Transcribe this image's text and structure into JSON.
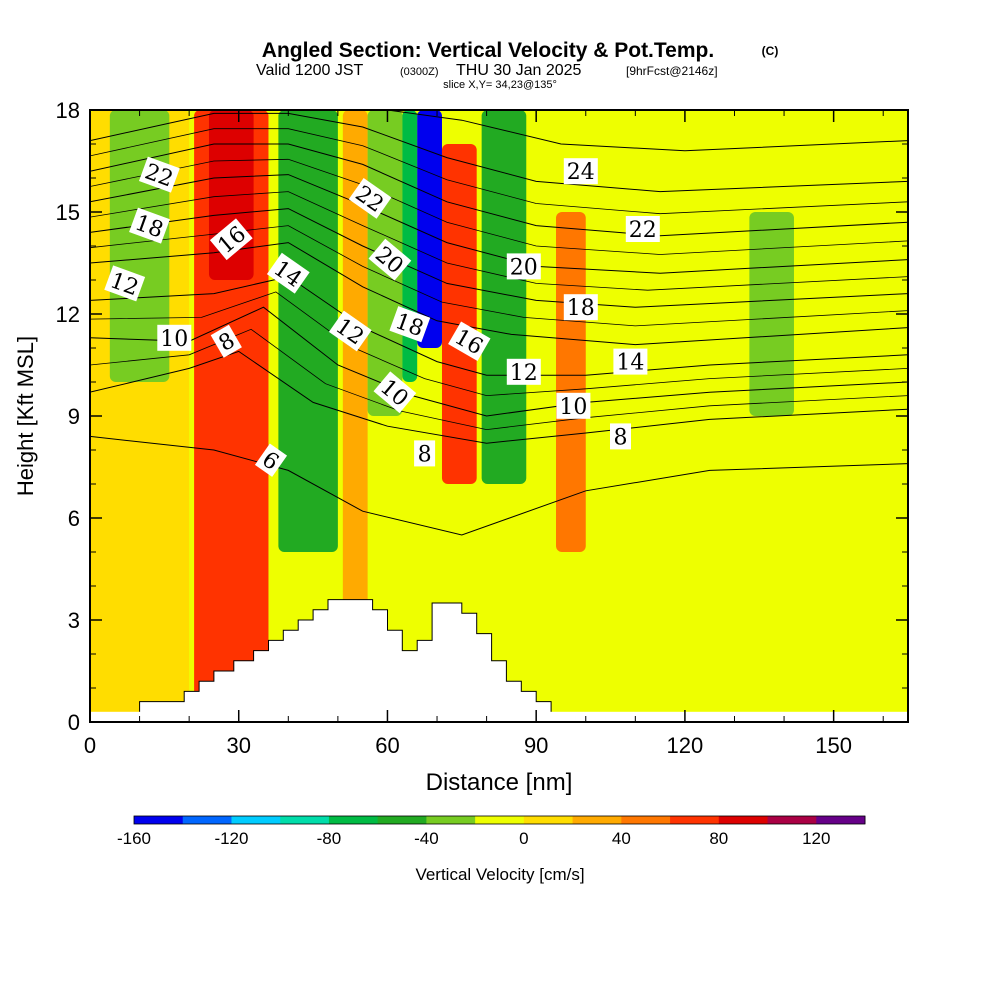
{
  "title": {
    "main": "Angled Section: Vertical Velocity & Pot.Temp.",
    "main_suffix": "(C)",
    "valid_a": "Valid 1200 JST",
    "valid_b": "(0300Z)",
    "valid_c": "THU 30 Jan 2025",
    "valid_d": "[9hrFcst@2146z]",
    "slice": "slice X,Y= 34,23@135°"
  },
  "chart_data": {
    "type": "heatmap",
    "xlabel": "Distance [nm]",
    "ylabel": "Height [Kft MSL]",
    "xlim": [
      0,
      165
    ],
    "ylim": [
      0,
      18
    ],
    "x_ticks": [
      0,
      30,
      60,
      90,
      120,
      150
    ],
    "y_ticks": [
      0,
      3,
      6,
      9,
      12,
      15,
      18
    ],
    "colorbar": {
      "label": "Vertical Velocity [cm/s]",
      "min": -160,
      "max": 140,
      "step": 20,
      "tick_values": [
        -160,
        -120,
        -80,
        -40,
        0,
        40,
        80,
        120
      ],
      "colors": [
        "#0000ee",
        "#0066ff",
        "#00ccff",
        "#00ddaa",
        "#00bb44",
        "#22aa22",
        "#77cc22",
        "#eeff00",
        "#ffdd00",
        "#ffaa00",
        "#ff7700",
        "#ff3300",
        "#dd0000",
        "#aa0044",
        "#660088"
      ]
    },
    "velocity_bands": [
      {
        "x_from": 0,
        "x_to": 20,
        "value": 10
      },
      {
        "x_from": 4,
        "x_to": 16,
        "value": -40,
        "y_from": 10,
        "y_to": 18
      },
      {
        "x_from": 21,
        "x_to": 36,
        "value": 60
      },
      {
        "x_from": 24,
        "x_to": 33,
        "value": 90,
        "y_from": 13,
        "y_to": 18
      },
      {
        "x_from": 38,
        "x_to": 50,
        "value": -50,
        "y_from": 5,
        "y_to": 18
      },
      {
        "x_from": 51,
        "x_to": 56,
        "value": 20
      },
      {
        "x_from": 56,
        "x_to": 63,
        "value": -40,
        "y_from": 9,
        "y_to": 18
      },
      {
        "x_from": 63,
        "x_to": 66,
        "value": -80,
        "y_from": 10,
        "y_to": 18
      },
      {
        "x_from": 66,
        "x_to": 71,
        "value": -150,
        "y_from": 11,
        "y_to": 18
      },
      {
        "x_from": 71,
        "x_to": 78,
        "value": 70,
        "y_from": 7,
        "y_to": 17
      },
      {
        "x_from": 79,
        "x_to": 88,
        "value": -50,
        "y_from": 7,
        "y_to": 18
      },
      {
        "x_from": 94,
        "x_to": 100,
        "value": 40,
        "y_from": 5,
        "y_to": 15
      },
      {
        "x_from": 133,
        "x_to": 142,
        "value": -30,
        "y_from": 9,
        "y_to": 15
      }
    ],
    "terrain_profile": [
      [
        10,
        0.3
      ],
      [
        10,
        0.6
      ],
      [
        19,
        0.6
      ],
      [
        19,
        0.9
      ],
      [
        22,
        0.9
      ],
      [
        22,
        1.2
      ],
      [
        25,
        1.2
      ],
      [
        25,
        1.5
      ],
      [
        29,
        1.5
      ],
      [
        29,
        1.8
      ],
      [
        33,
        1.8
      ],
      [
        33,
        2.1
      ],
      [
        36,
        2.1
      ],
      [
        36,
        2.4
      ],
      [
        39,
        2.4
      ],
      [
        39,
        2.7
      ],
      [
        42,
        2.7
      ],
      [
        42,
        3.0
      ],
      [
        45,
        3.0
      ],
      [
        45,
        3.3
      ],
      [
        48,
        3.3
      ],
      [
        48,
        3.6
      ],
      [
        57,
        3.6
      ],
      [
        57,
        3.3
      ],
      [
        60,
        3.3
      ],
      [
        60,
        2.7
      ],
      [
        63,
        2.7
      ],
      [
        63,
        2.1
      ],
      [
        66,
        2.1
      ],
      [
        66,
        2.4
      ],
      [
        69,
        2.4
      ],
      [
        69,
        3.5
      ],
      [
        75,
        3.5
      ],
      [
        75,
        3.2
      ],
      [
        78,
        3.2
      ],
      [
        78,
        2.6
      ],
      [
        81,
        2.6
      ],
      [
        81,
        1.8
      ],
      [
        84,
        1.8
      ],
      [
        84,
        1.2
      ],
      [
        87,
        1.2
      ],
      [
        87,
        0.9
      ],
      [
        90,
        0.9
      ],
      [
        90,
        0.6
      ],
      [
        93,
        0.6
      ],
      [
        93,
        0.3
      ]
    ],
    "theta_contours": [
      {
        "value": 6,
        "points": [
          [
            0,
            8.4
          ],
          [
            25,
            8.0
          ],
          [
            40,
            7.4
          ],
          [
            55,
            6.2
          ],
          [
            75,
            5.5
          ],
          [
            100,
            6.8
          ],
          [
            125,
            7.4
          ],
          [
            165,
            7.6
          ]
        ]
      },
      {
        "value": 8,
        "points": [
          [
            0,
            9.7
          ],
          [
            20,
            10.4
          ],
          [
            30,
            10.9
          ],
          [
            45,
            9.4
          ],
          [
            60,
            8.7
          ],
          [
            80,
            8.2
          ],
          [
            100,
            8.5
          ],
          [
            125,
            8.9
          ],
          [
            165,
            9.2
          ]
        ]
      },
      {
        "value": 10,
        "points": [
          [
            0,
            11.3
          ],
          [
            20,
            11.2
          ],
          [
            35,
            12.2
          ],
          [
            50,
            10.5
          ],
          [
            65,
            9.6
          ],
          [
            80,
            9.0
          ],
          [
            100,
            9.4
          ],
          [
            125,
            9.7
          ],
          [
            165,
            10.0
          ]
        ]
      },
      {
        "value": 12,
        "points": [
          [
            0,
            12.4
          ],
          [
            25,
            12.6
          ],
          [
            40,
            13.1
          ],
          [
            55,
            11.6
          ],
          [
            70,
            10.6
          ],
          [
            80,
            10.2
          ],
          [
            100,
            10.2
          ],
          [
            125,
            10.5
          ],
          [
            165,
            10.8
          ]
        ]
      },
      {
        "value": 14,
        "points": [
          [
            0,
            13.5
          ],
          [
            25,
            13.8
          ],
          [
            40,
            14.1
          ],
          [
            55,
            12.8
          ],
          [
            70,
            11.8
          ],
          [
            85,
            11.4
          ],
          [
            110,
            11.1
          ],
          [
            165,
            11.6
          ]
        ]
      },
      {
        "value": 16,
        "points": [
          [
            0,
            14.4
          ],
          [
            25,
            14.9
          ],
          [
            40,
            15.1
          ],
          [
            55,
            14.0
          ],
          [
            72,
            12.9
          ],
          [
            90,
            12.4
          ],
          [
            110,
            12.2
          ],
          [
            165,
            12.6
          ]
        ]
      },
      {
        "value": 18,
        "points": [
          [
            0,
            15.3
          ],
          [
            25,
            16.0
          ],
          [
            40,
            16.1
          ],
          [
            55,
            15.2
          ],
          [
            72,
            14.1
          ],
          [
            90,
            13.4
          ],
          [
            115,
            13.2
          ],
          [
            165,
            13.6
          ]
        ]
      },
      {
        "value": 20,
        "points": [
          [
            0,
            16.2
          ],
          [
            25,
            17.0
          ],
          [
            40,
            17.0
          ],
          [
            55,
            16.4
          ],
          [
            72,
            15.3
          ],
          [
            90,
            14.6
          ],
          [
            115,
            14.3
          ],
          [
            165,
            14.7
          ]
        ]
      },
      {
        "value": 22,
        "points": [
          [
            0,
            17.1
          ],
          [
            25,
            17.9
          ],
          [
            40,
            17.9
          ],
          [
            55,
            17.5
          ],
          [
            72,
            16.6
          ],
          [
            90,
            15.9
          ],
          [
            115,
            15.6
          ],
          [
            165,
            15.9
          ]
        ]
      },
      {
        "value": 24,
        "points": [
          [
            60,
            18.0
          ],
          [
            75,
            17.7
          ],
          [
            95,
            17.0
          ],
          [
            120,
            16.8
          ],
          [
            165,
            17.1
          ]
        ]
      }
    ],
    "contour_labels": [
      {
        "text": "22",
        "x": 14,
        "y": 16.1,
        "rot": 20
      },
      {
        "text": "18",
        "x": 12,
        "y": 14.6,
        "rot": 20
      },
      {
        "text": "12",
        "x": 7,
        "y": 12.9,
        "rot": 20
      },
      {
        "text": "10",
        "x": 17,
        "y": 11.3,
        "rot": 0
      },
      {
        "text": "16",
        "x": 28.5,
        "y": 14.2,
        "rot": -40
      },
      {
        "text": "8",
        "x": 27.5,
        "y": 11.2,
        "rot": -30
      },
      {
        "text": "14",
        "x": 40,
        "y": 13.2,
        "rot": 35
      },
      {
        "text": "6",
        "x": 36.5,
        "y": 7.7,
        "rot": 35
      },
      {
        "text": "22",
        "x": 56.5,
        "y": 15.4,
        "rot": 35
      },
      {
        "text": "20",
        "x": 60.5,
        "y": 13.6,
        "rot": 40
      },
      {
        "text": "12",
        "x": 52.5,
        "y": 11.5,
        "rot": 35
      },
      {
        "text": "18",
        "x": 64.5,
        "y": 11.7,
        "rot": 20
      },
      {
        "text": "10",
        "x": 61.5,
        "y": 9.7,
        "rot": 40
      },
      {
        "text": "8",
        "x": 67.5,
        "y": 7.9,
        "rot": 0
      },
      {
        "text": "16",
        "x": 76.5,
        "y": 11.2,
        "rot": 30
      },
      {
        "text": "20",
        "x": 87.5,
        "y": 13.4,
        "rot": 0
      },
      {
        "text": "12",
        "x": 87.5,
        "y": 10.3,
        "rot": 0
      },
      {
        "text": "24",
        "x": 99,
        "y": 16.2,
        "rot": 0
      },
      {
        "text": "22",
        "x": 111.5,
        "y": 14.5,
        "rot": 0
      },
      {
        "text": "18",
        "x": 99,
        "y": 12.2,
        "rot": 0
      },
      {
        "text": "14",
        "x": 109,
        "y": 10.6,
        "rot": 0
      },
      {
        "text": "10",
        "x": 97.5,
        "y": 9.3,
        "rot": 0
      },
      {
        "text": "8",
        "x": 107,
        "y": 8.4,
        "rot": 0
      }
    ]
  }
}
